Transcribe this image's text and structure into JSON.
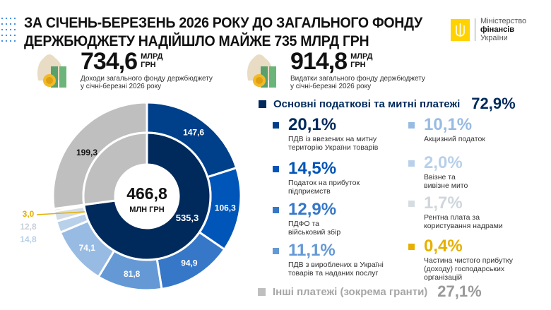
{
  "header": {
    "title_line1": "ЗА СІЧЕНЬ-БЕРЕЗЕНЬ 2026 РОКУ ДО ЗАГАЛЬНОГО ФОНДУ",
    "title_line2": "ДЕРЖБЮДЖЕТУ НАДІЙШЛО МАЙЖЕ 735 МЛРД ГРН",
    "logo": {
      "line1": "Міністерство",
      "line2": "фінансів",
      "line3": "України",
      "color": "#ffd200"
    }
  },
  "stats": [
    {
      "value": "734,6",
      "unit1": "МЛРД",
      "unit2": "ГРН",
      "desc1": "Доходи загального фонду держбюджету",
      "desc2": "у січні-березні 2026 року",
      "icon": "money-bag-icon"
    },
    {
      "value": "914,8",
      "unit1": "МЛРД",
      "unit2": "ГРН",
      "desc1": "Видатки загального фонду держбюджету",
      "desc2": "у січні-березні 2026 року",
      "icon": "money-bag-icon"
    }
  ],
  "legend": {
    "main": {
      "label": "Основні податкові та митні платежі",
      "pct": "72,9%",
      "color": "#002a5c"
    },
    "other": {
      "label": "Інші платежі (зокрема гранти)",
      "pct": "27,1%",
      "color": "#bfbfbf"
    },
    "items": [
      {
        "pct": "20,1%",
        "desc1": "ПДВ із ввезених на митну",
        "desc2": "територію України товарів",
        "color": "#003f8a"
      },
      {
        "pct": "14,5%",
        "desc1": "Податок на прибуток",
        "desc2": "підприємств",
        "color": "#0055b8"
      },
      {
        "pct": "12,9%",
        "desc1": "ПДФО та",
        "desc2": "військовий збір",
        "color": "#3677c8"
      },
      {
        "pct": "11,1%",
        "desc1": "ПДВ з вироблених в Україні",
        "desc2": "товарів та наданих послуг",
        "color": "#6499d6"
      },
      {
        "pct": "10,1%",
        "desc1": "Акцизний податок",
        "desc2": "",
        "color": "#98bbe3"
      },
      {
        "pct": "2,0%",
        "desc1": "Ввізне та",
        "desc2": "вивізне мито",
        "color": "#b8d0ea"
      },
      {
        "pct": "1,7%",
        "desc1": "Рентна плата за",
        "desc2": "користування надрами",
        "color": "#d5dde3"
      },
      {
        "pct": "0,4%",
        "desc1": "Частина чистого прибутку",
        "desc2": "(доходу) господарських",
        "desc3": "організацій",
        "color": "#e6b000"
      }
    ]
  },
  "chart_data": {
    "type": "pie",
    "center_value": "466,8",
    "center_unit": "МЛН ГРН",
    "outer": {
      "values": [
        147.6,
        106.3,
        94.9,
        81.8,
        74.1,
        14.8,
        12.8,
        3.0,
        199.3
      ],
      "labels": [
        "147,6",
        "106,3",
        "94,9",
        "81,8",
        "74,1",
        "14,8",
        "12,8",
        "3,0",
        "199,3"
      ],
      "colors": [
        "#003f8a",
        "#0055b8",
        "#3677c8",
        "#6499d6",
        "#98bbe3",
        "#b8d0ea",
        "#d5dde3",
        "#e6b000",
        "#bfbfbf"
      ]
    },
    "inner": {
      "values": [
        535.3,
        199.3
      ],
      "labels": [
        "535,3",
        ""
      ],
      "colors": [
        "#002a5c",
        "#bfbfbf"
      ]
    }
  }
}
